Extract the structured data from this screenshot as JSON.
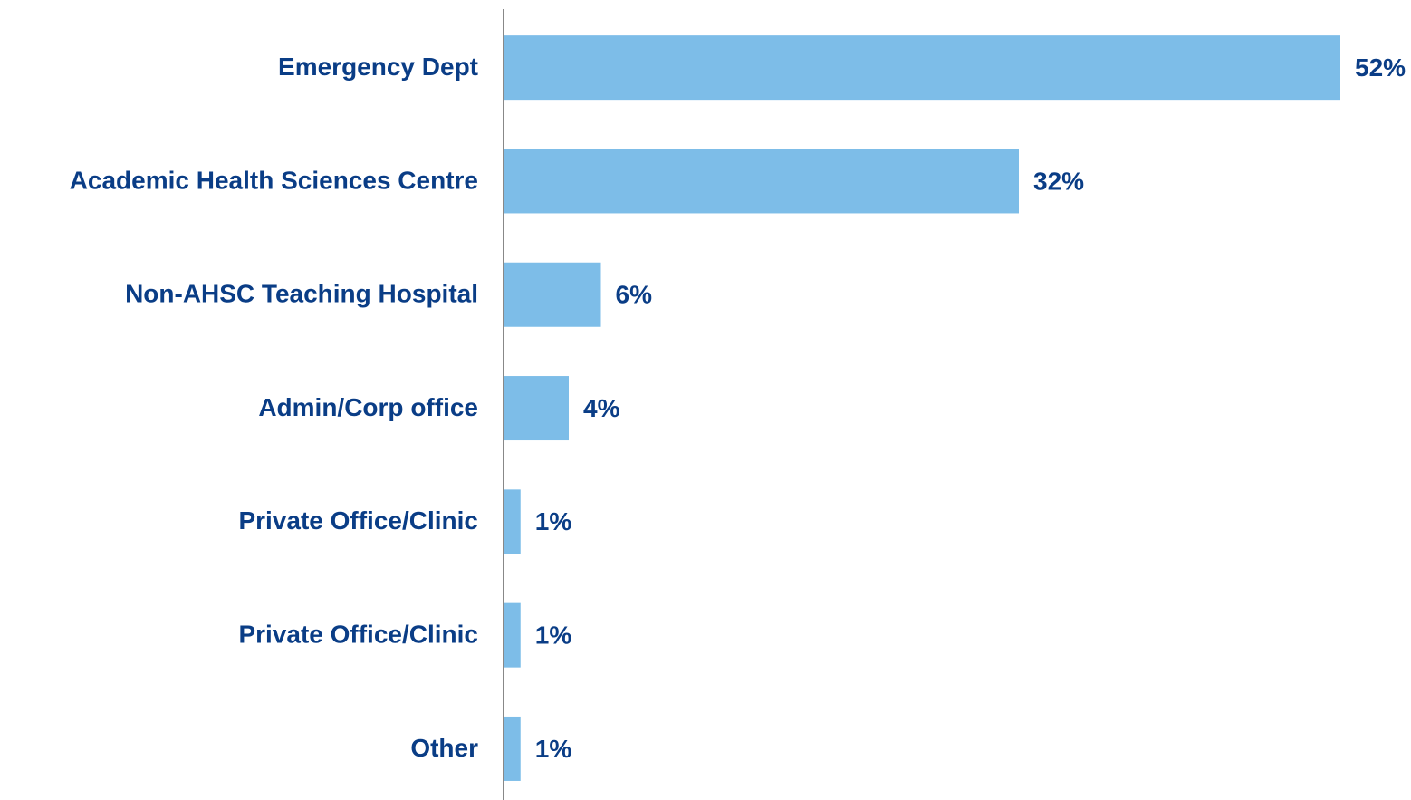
{
  "chart_data": {
    "type": "bar",
    "orientation": "horizontal",
    "categories": [
      "Emergency Dept",
      "Academic Health Sciences Centre",
      "Non-AHSC Teaching Hospital",
      "Admin/Corp office",
      "Private Office/Clinic",
      "Private Office/Clinic",
      "Other"
    ],
    "values": [
      52,
      32,
      6,
      4,
      1,
      1,
      1
    ],
    "value_labels": [
      "52%",
      "32%",
      "6%",
      "4%",
      "1%",
      "1%",
      "1%"
    ],
    "color": "#7dbde8"
  }
}
